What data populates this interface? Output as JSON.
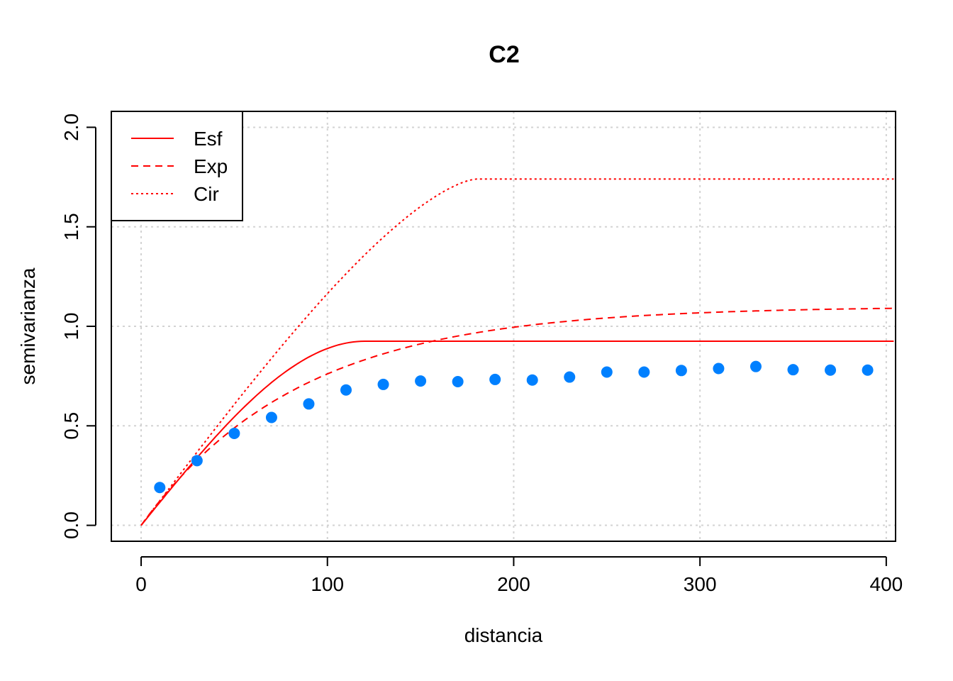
{
  "chart_data": {
    "type": "line",
    "title": "C2",
    "xlabel": "distancia",
    "ylabel": "semivarianza",
    "xlim": [
      -16,
      405
    ],
    "ylim": [
      -0.08,
      2.08
    ],
    "xticks": [
      0,
      100,
      200,
      300,
      400
    ],
    "xtick_labels": [
      "0",
      "100",
      "200",
      "300",
      "400"
    ],
    "yticks": [
      0.0,
      0.5,
      1.0,
      1.5,
      2.0
    ],
    "ytick_labels": [
      "0.0",
      "0.5",
      "1.0",
      "1.5",
      "2.0"
    ],
    "grid": true,
    "legend": {
      "position": "top-left",
      "entries": [
        "Esf",
        "Exp",
        "Cir"
      ]
    },
    "points": {
      "color": "#0080ff",
      "x": [
        10,
        30,
        50,
        70,
        90,
        110,
        130,
        150,
        170,
        190,
        210,
        230,
        250,
        270,
        290,
        310,
        330,
        350,
        370,
        390
      ],
      "y": [
        0.19,
        0.325,
        0.462,
        0.542,
        0.61,
        0.68,
        0.708,
        0.725,
        0.722,
        0.733,
        0.73,
        0.745,
        0.77,
        0.77,
        0.778,
        0.788,
        0.798,
        0.782,
        0.78,
        0.78
      ]
    },
    "series": [
      {
        "name": "Esf",
        "color": "#ff0000",
        "dash": "solid",
        "model": "spherical",
        "nugget": 0,
        "sill": 0.925,
        "range": 120
      },
      {
        "name": "Exp",
        "color": "#ff0000",
        "dash": "dashed",
        "model": "exponential",
        "nugget": 0,
        "sill": 1.1,
        "range": 85
      },
      {
        "name": "Cir",
        "color": "#ff0000",
        "dash": "dotted",
        "model": "circular",
        "nugget": 0,
        "sill": 1.74,
        "range": 180
      }
    ]
  }
}
